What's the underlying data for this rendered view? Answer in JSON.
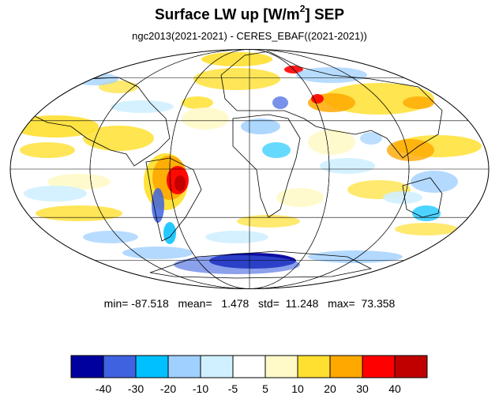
{
  "title": {
    "main": "Surface LW up [W/m",
    "superscript": "2",
    "suffix": "]  SEP"
  },
  "subtitle": "ngc2013(2021-2021) - CERES_EBAF((2021-2021))",
  "stats": {
    "text": "min= -87.518   mean=   1.478   std=  11.248   max=  73.358",
    "min": -87.518,
    "mean": 1.478,
    "std": 11.248,
    "max": 73.358
  },
  "map": {
    "projection": "mollweide",
    "ocean_base_color": "#ffffff",
    "grid_color": "#000000"
  },
  "colorbar": {
    "colors": [
      "#00009e",
      "#3f63e0",
      "#00c0ff",
      "#a0d0ff",
      "#d0f0ff",
      "#ffffff",
      "#fffac8",
      "#ffe030",
      "#ffa800",
      "#ff0000",
      "#c00000"
    ],
    "tick_labels": [
      "-40",
      "-30",
      "-20",
      "-10",
      "-5",
      "5",
      "10",
      "20",
      "30",
      "40"
    ]
  }
}
